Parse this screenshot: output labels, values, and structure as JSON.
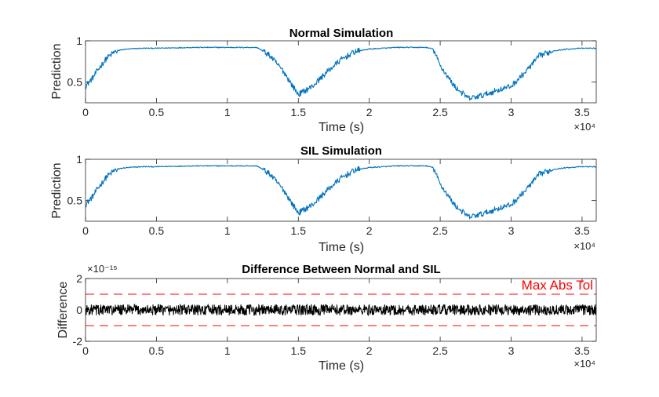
{
  "chart_data": [
    {
      "type": "line",
      "title": "Normal Simulation",
      "xlabel": "Time (s)",
      "ylabel": "Prediction",
      "x_exponent": "×10⁴",
      "xlim": [
        0,
        3.6
      ],
      "ylim": [
        0.25,
        1.0
      ],
      "xticks": [
        "0",
        "0.5",
        "1",
        "1.5",
        "2",
        "2.5",
        "3",
        "3.5"
      ],
      "yticks": [
        "0.5",
        "1"
      ],
      "color": "#0072BD",
      "series": [
        {
          "x": [
            0,
            0.05,
            0.1,
            0.15,
            0.2,
            0.25,
            0.3,
            0.4,
            0.5,
            0.75,
            1.0,
            1.2,
            1.22,
            1.3,
            1.4,
            1.45,
            1.5,
            1.55,
            1.6,
            1.7,
            1.8,
            1.9,
            2.0,
            2.2,
            2.4,
            2.45,
            2.5,
            2.6,
            2.7,
            2.8,
            2.9,
            3.0,
            3.1,
            3.2,
            3.3,
            3.4,
            3.5,
            3.6
          ],
          "y": [
            0.45,
            0.55,
            0.68,
            0.79,
            0.86,
            0.89,
            0.9,
            0.91,
            0.91,
            0.92,
            0.92,
            0.92,
            0.91,
            0.82,
            0.62,
            0.48,
            0.35,
            0.4,
            0.45,
            0.62,
            0.77,
            0.87,
            0.9,
            0.92,
            0.92,
            0.9,
            0.7,
            0.45,
            0.3,
            0.34,
            0.4,
            0.45,
            0.62,
            0.82,
            0.88,
            0.9,
            0.91,
            0.91
          ]
        }
      ]
    },
    {
      "type": "line",
      "title": "SIL Simulation",
      "xlabel": "Time (s)",
      "ylabel": "Prediction",
      "x_exponent": "×10⁴",
      "xlim": [
        0,
        3.6
      ],
      "ylim": [
        0.25,
        1.0
      ],
      "xticks": [
        "0",
        "0.5",
        "1",
        "1.5",
        "2",
        "2.5",
        "3",
        "3.5"
      ],
      "yticks": [
        "0.5",
        "1"
      ],
      "color": "#0072BD",
      "series": [
        {
          "x": [
            0,
            0.05,
            0.1,
            0.15,
            0.2,
            0.25,
            0.3,
            0.4,
            0.5,
            0.75,
            1.0,
            1.2,
            1.22,
            1.3,
            1.4,
            1.45,
            1.5,
            1.55,
            1.6,
            1.7,
            1.8,
            1.9,
            2.0,
            2.2,
            2.4,
            2.45,
            2.5,
            2.6,
            2.7,
            2.8,
            2.9,
            3.0,
            3.1,
            3.2,
            3.3,
            3.4,
            3.5,
            3.6
          ],
          "y": [
            0.45,
            0.55,
            0.68,
            0.79,
            0.86,
            0.89,
            0.9,
            0.91,
            0.91,
            0.92,
            0.92,
            0.92,
            0.91,
            0.82,
            0.62,
            0.48,
            0.35,
            0.4,
            0.45,
            0.62,
            0.77,
            0.87,
            0.9,
            0.92,
            0.92,
            0.9,
            0.7,
            0.45,
            0.3,
            0.34,
            0.4,
            0.45,
            0.62,
            0.82,
            0.88,
            0.9,
            0.91,
            0.91
          ]
        }
      ]
    },
    {
      "type": "line",
      "title": "Difference Between Normal and SIL",
      "xlabel": "Time (s)",
      "ylabel": "Difference",
      "x_exponent": "×10⁴",
      "y_exponent": "×10⁻¹⁵",
      "xlim": [
        0,
        3.6
      ],
      "ylim": [
        -2,
        2
      ],
      "xticks": [
        "0",
        "0.5",
        "1",
        "1.5",
        "2",
        "2.5",
        "3",
        "3.5"
      ],
      "yticks": [
        "-2",
        "0",
        "2"
      ],
      "color": "#000000",
      "difference_amplitude": 0.35,
      "tolerance": {
        "label": "Max Abs Tol",
        "values": [
          1,
          -1
        ],
        "color": "#FF0000"
      }
    }
  ]
}
